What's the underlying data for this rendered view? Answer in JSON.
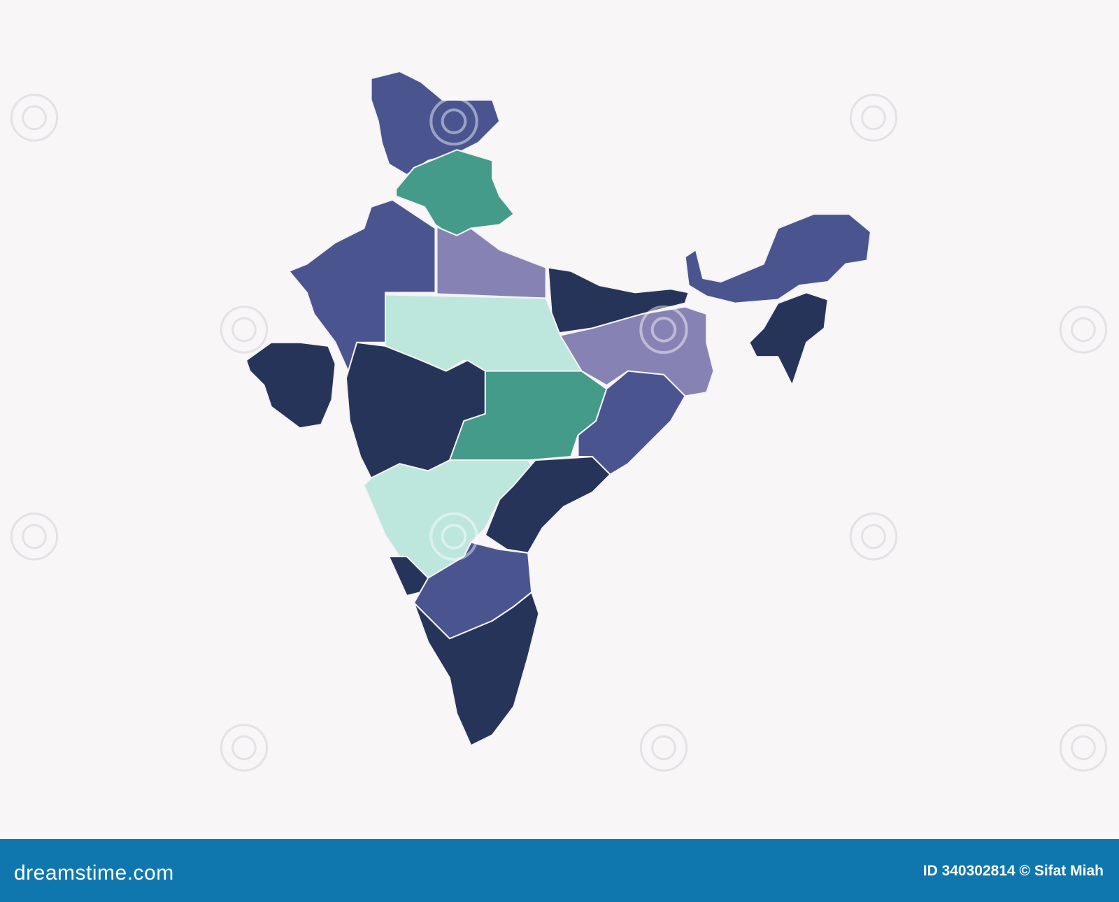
{
  "image": {
    "subject": "India map divided into colored regions",
    "colors": {
      "navy": "#27345a",
      "indigo": "#4a5590",
      "lavender": "#8682b3",
      "teal": "#449b8a",
      "mint": "#bde6dc",
      "background": "#f8f6f7",
      "footer": "#1077ae"
    },
    "watermark_icon": "spiral-icon"
  },
  "footer": {
    "logo": "dreamstime.com",
    "credit": "ID 340302814 © Sifat Miah"
  }
}
